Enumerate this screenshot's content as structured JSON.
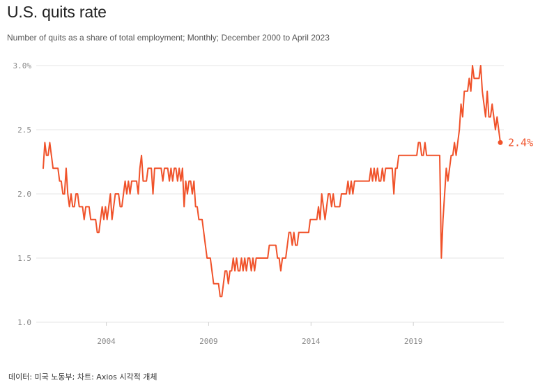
{
  "title": "U.S. quits rate",
  "subtitle": "Number of quits as a share of total employment; Monthly; December 2000 to April 2023",
  "source": "데이터: 미국 노동부; 차트: Axios 시각적 개체",
  "colors": {
    "line": "#f0522a",
    "grid": "#e6e6e6",
    "axis_text": "#888888"
  },
  "chart_data": {
    "type": "line",
    "title": "U.S. quits rate",
    "xlabel": "",
    "ylabel": "",
    "x_start": "2000-12",
    "x_end": "2023-04",
    "frequency": "monthly",
    "ylim": [
      1.0,
      3.0
    ],
    "yticks": [
      {
        "value": 3.0,
        "label": "3.0%"
      },
      {
        "value": 2.5,
        "label": "2.5"
      },
      {
        "value": 2.0,
        "label": "2.0"
      },
      {
        "value": 1.5,
        "label": "1.5"
      },
      {
        "value": 1.0,
        "label": "1.0"
      }
    ],
    "xticks": [
      {
        "value": "2004-01",
        "label": "2004"
      },
      {
        "value": "2009-01",
        "label": "2009"
      },
      {
        "value": "2014-01",
        "label": "2014"
      },
      {
        "value": "2019-01",
        "label": "2019"
      }
    ],
    "grid": true,
    "end_label": "2.4%",
    "series": [
      {
        "values": [
          2.2,
          2.4,
          2.3,
          2.3,
          2.4,
          2.3,
          2.2,
          2.2,
          2.2,
          2.2,
          2.1,
          2.1,
          2.0,
          2.0,
          2.2,
          2.0,
          1.9,
          2.0,
          1.9,
          1.9,
          2.0,
          2.0,
          1.9,
          1.9,
          1.9,
          1.8,
          1.9,
          1.9,
          1.9,
          1.8,
          1.8,
          1.8,
          1.8,
          1.7,
          1.7,
          1.8,
          1.9,
          1.8,
          1.9,
          1.8,
          1.9,
          2.0,
          1.8,
          1.9,
          2.0,
          2.0,
          2.0,
          1.9,
          1.9,
          2.0,
          2.1,
          2.0,
          2.1,
          2.0,
          2.1,
          2.1,
          2.1,
          2.1,
          2.0,
          2.2,
          2.3,
          2.1,
          2.1,
          2.1,
          2.2,
          2.2,
          2.2,
          2.0,
          2.2,
          2.2,
          2.2,
          2.2,
          2.2,
          2.1,
          2.2,
          2.2,
          2.2,
          2.1,
          2.2,
          2.1,
          2.2,
          2.2,
          2.1,
          2.2,
          2.1,
          2.2,
          1.9,
          2.1,
          2.0,
          2.1,
          2.1,
          2.0,
          2.1,
          1.9,
          1.9,
          1.8,
          1.8,
          1.8,
          1.7,
          1.6,
          1.5,
          1.5,
          1.5,
          1.4,
          1.3,
          1.3,
          1.3,
          1.3,
          1.2,
          1.2,
          1.3,
          1.4,
          1.4,
          1.3,
          1.4,
          1.4,
          1.5,
          1.4,
          1.5,
          1.4,
          1.4,
          1.5,
          1.4,
          1.5,
          1.4,
          1.5,
          1.5,
          1.4,
          1.5,
          1.4,
          1.5,
          1.5,
          1.5,
          1.5,
          1.5,
          1.5,
          1.5,
          1.5,
          1.6,
          1.6,
          1.6,
          1.6,
          1.6,
          1.5,
          1.5,
          1.4,
          1.5,
          1.5,
          1.5,
          1.6,
          1.7,
          1.7,
          1.6,
          1.7,
          1.6,
          1.6,
          1.7,
          1.7,
          1.7,
          1.7,
          1.7,
          1.7,
          1.7,
          1.8,
          1.8,
          1.8,
          1.8,
          1.8,
          1.9,
          1.8,
          2.0,
          1.9,
          1.8,
          1.9,
          2.0,
          2.0,
          1.9,
          2.0,
          1.9,
          1.9,
          1.9,
          1.9,
          2.0,
          2.0,
          2.0,
          2.0,
          2.1,
          2.0,
          2.1,
          2.0,
          2.1,
          2.1,
          2.1,
          2.1,
          2.1,
          2.1,
          2.1,
          2.1,
          2.1,
          2.1,
          2.2,
          2.1,
          2.2,
          2.1,
          2.2,
          2.1,
          2.1,
          2.2,
          2.1,
          2.2,
          2.2,
          2.2,
          2.2,
          2.2,
          2.0,
          2.2,
          2.2,
          2.3,
          2.3,
          2.3,
          2.3,
          2.3,
          2.3,
          2.3,
          2.3,
          2.3,
          2.3,
          2.3,
          2.3,
          2.4,
          2.4,
          2.3,
          2.3,
          2.4,
          2.3,
          2.3,
          2.3,
          2.3,
          2.3,
          2.3,
          2.3,
          2.3,
          2.3,
          1.5,
          1.8,
          2.0,
          2.2,
          2.1,
          2.2,
          2.3,
          2.3,
          2.4,
          2.3,
          2.4,
          2.5,
          2.7,
          2.6,
          2.8,
          2.8,
          2.8,
          2.9,
          2.8,
          3.0,
          2.9,
          2.9,
          2.9,
          2.9,
          3.0,
          2.8,
          2.7,
          2.6,
          2.8,
          2.6,
          2.6,
          2.7,
          2.6,
          2.5,
          2.6,
          2.5,
          2.4
        ]
      }
    ]
  }
}
